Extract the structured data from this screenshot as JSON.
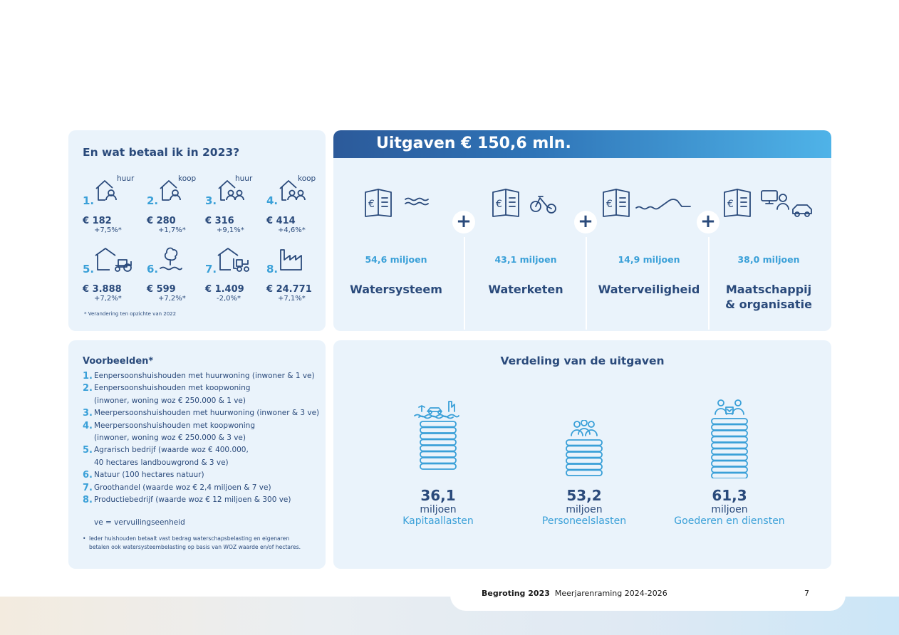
{
  "pay": {
    "title": "En wat betaal ik in 2023?",
    "items": [
      {
        "num": "1.",
        "tag": "huur",
        "amount": "€ 182",
        "change": "+7,5%*"
      },
      {
        "num": "2.",
        "tag": "koop",
        "amount": "€ 280",
        "change": "+1,7%*"
      },
      {
        "num": "3.",
        "tag": "huur",
        "amount": "€ 316",
        "change": "+9,1%*"
      },
      {
        "num": "4.",
        "tag": "koop",
        "amount": "€ 414",
        "change": "+4,6%*"
      },
      {
        "num": "5.",
        "tag": "",
        "amount": "€ 3.888",
        "change": "+7,2%*"
      },
      {
        "num": "6.",
        "tag": "",
        "amount": "€ 599",
        "change": "+7,2%*"
      },
      {
        "num": "7.",
        "tag": "",
        "amount": "€ 1.409",
        "change": "-2,0%*"
      },
      {
        "num": "8.",
        "tag": "",
        "amount": "€ 24.771",
        "change": "+7,1%*"
      }
    ],
    "footnote": "* Verandering ten opzichte van 2022"
  },
  "examples": {
    "title": "Voorbeelden*",
    "rows": [
      {
        "num": "1.",
        "text": "Eenpersoonshuishouden met huurwoning (inwoner & 1 ve)"
      },
      {
        "num": "2.",
        "text": "Eenpersoonshuishouden met koopwoning"
      },
      {
        "num": "",
        "text": "(inwoner, woning woz € 250.000 & 1 ve)"
      },
      {
        "num": "3.",
        "text": "Meerpersoonshuishouden met huurwoning (inwoner & 3 ve)"
      },
      {
        "num": "4.",
        "text": "Meerpersoonshuishouden met koopwoning"
      },
      {
        "num": "",
        "text": "(inwoner, woning woz € 250.000 & 3 ve)"
      },
      {
        "num": "5.",
        "text": "Agrarisch bedrijf (waarde woz € 400.000,"
      },
      {
        "num": "",
        "text": "40 hectares landbouwgrond & 3 ve)"
      },
      {
        "num": "6.",
        "text": "Natuur (100 hectares natuur)"
      },
      {
        "num": "7.",
        "text": "Groothandel (waarde woz € 2,4 miljoen & 7 ve)"
      },
      {
        "num": "8.",
        "text": "Productiebedrijf (waarde woz € 12 miljoen & 300 ve)"
      }
    ],
    "ve": "ve = vervuilingseenheid",
    "note_bullet": "•",
    "note": "Ieder huishouden betaalt vast bedrag waterschapsbelasting en eigenaren betalen ook watersysteembelasting op basis van WOZ waarde en/of hectares."
  },
  "outlays": {
    "banner": "Uitgaven € 150,6 mln.",
    "plus": "+",
    "categories": [
      {
        "amount": "54,6 miljoen",
        "name": "Watersysteem",
        "name2": ""
      },
      {
        "amount": "43,1 miljoen",
        "name": "Waterketen",
        "name2": ""
      },
      {
        "amount": "14,9 miljoen",
        "name": "Waterveiligheid",
        "name2": ""
      },
      {
        "amount": "38,0 miljoen",
        "name": "Maatschappij",
        "name2": "& organisatie"
      }
    ]
  },
  "distribution": {
    "title": "Verdeling van de uitgaven",
    "items": [
      {
        "value": "36,1",
        "unit": "miljoen",
        "name": "Kapitaallasten"
      },
      {
        "value": "53,2",
        "unit": "miljoen",
        "name": "Personeelslasten"
      },
      {
        "value": "61,3",
        "unit": "miljoen",
        "name": "Goederen en diensten"
      }
    ]
  },
  "footer": {
    "title_bold": "Begroting 2023",
    "title_rest": "Meerjarenraming 2024-2026",
    "page": "7"
  },
  "colors": {
    "navy": "#2a4a7b",
    "accent": "#3aa0d8",
    "panel": "#eaf3fb"
  }
}
